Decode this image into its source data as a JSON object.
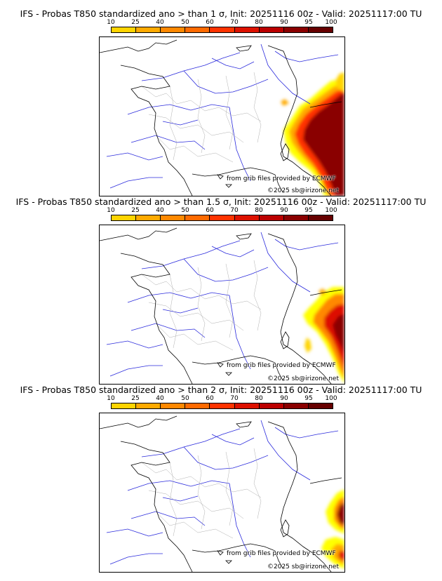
{
  "colors": {
    "scale": [
      "#ffff00",
      "#ffd400",
      "#ffaa00",
      "#ff8800",
      "#ff6a00",
      "#ff3300",
      "#dd1100",
      "#bb0000",
      "#8a0000",
      "#660000"
    ],
    "border": "#000000",
    "rivers": "#2b2bdc",
    "admin": "#b0b0b0"
  },
  "scale_labels": [
    "10",
    "25",
    "40",
    "50",
    "60",
    "70",
    "80",
    "90",
    "95",
    "100"
  ],
  "credits": {
    "source": "from grib files provided by ECMWF",
    "copyright": "©2025 sb@irizone.net"
  },
  "panels": [
    {
      "title": "IFS - Probas T850  standardized ano > than 1 σ, Init: 20251116 00z - Valid: 20251117:00 TU",
      "threshold_sigma": 1
    },
    {
      "title": "IFS - Probas T850  standardized ano > than 1.5 σ, Init: 20251116 00z - Valid: 20251117:00 TU",
      "threshold_sigma": 1.5
    },
    {
      "title": "IFS - Probas T850  standardized ano > than 2 σ, Init: 20251116 00z - Valid: 20251117:00 TU",
      "threshold_sigma": 2
    }
  ]
}
